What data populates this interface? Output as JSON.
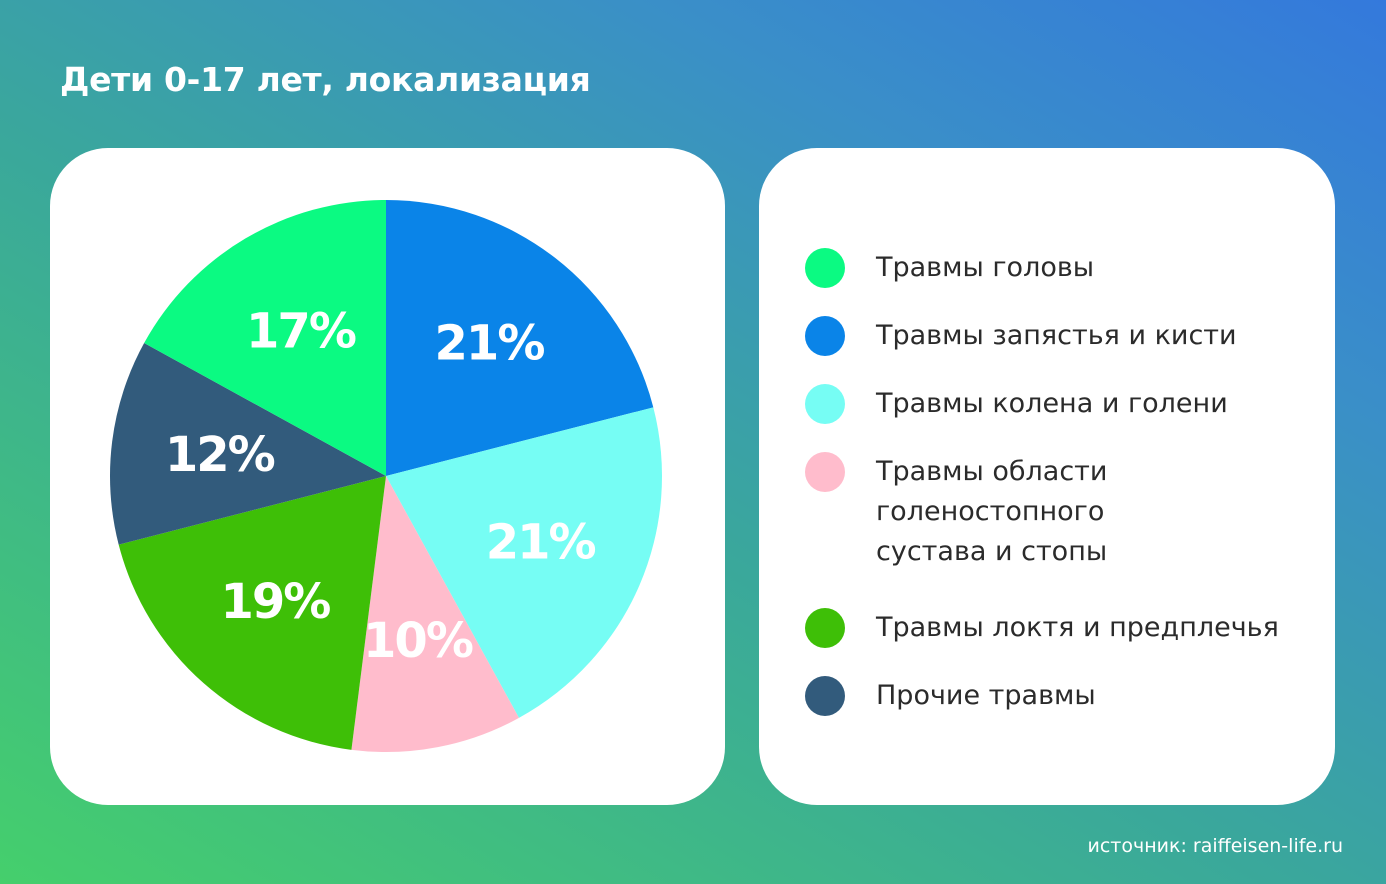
{
  "title": "Дети 0-17 лет, локализация",
  "source": "источник: raiffeisen-life.ru",
  "chart_data": {
    "type": "pie",
    "title": "Дети 0-17 лет, локализация",
    "legend": "right",
    "slices": [
      {
        "label": "Травмы запястья и кисти",
        "value": 21,
        "display": "21%",
        "color": "#0a84e8"
      },
      {
        "label": "Травмы колена и голени",
        "value": 21,
        "display": "21%",
        "color": "#76fdf4"
      },
      {
        "label": "Травмы области голеностопного сустава и стопы",
        "value": 10,
        "display": "10%",
        "color": "#ffbccc"
      },
      {
        "label": "Травмы локтя и предплечья",
        "value": 19,
        "display": "19%",
        "color": "#3ebf07"
      },
      {
        "label": "Прочие травмы",
        "value": 12,
        "display": "12%",
        "color": "#325b7c"
      },
      {
        "label": "Травмы головы",
        "value": 17,
        "display": "17%",
        "color": "#0bfa82"
      }
    ]
  },
  "legend": {
    "items": [
      {
        "lines": [
          "Травмы головы"
        ],
        "color": "#0bfa82"
      },
      {
        "lines": [
          "Травмы запястья и кисти"
        ],
        "color": "#0a84e8"
      },
      {
        "lines": [
          "Травмы колена и голени"
        ],
        "color": "#76fdf4"
      },
      {
        "lines": [
          "Травмы области",
          "голеностопного",
          "сустава и стопы"
        ],
        "color": "#ffbccc"
      },
      {
        "lines": [
          "Травмы локтя и предплечья"
        ],
        "color": "#3ebf07"
      },
      {
        "lines": [
          "Прочие травмы"
        ],
        "color": "#325b7c"
      }
    ]
  }
}
